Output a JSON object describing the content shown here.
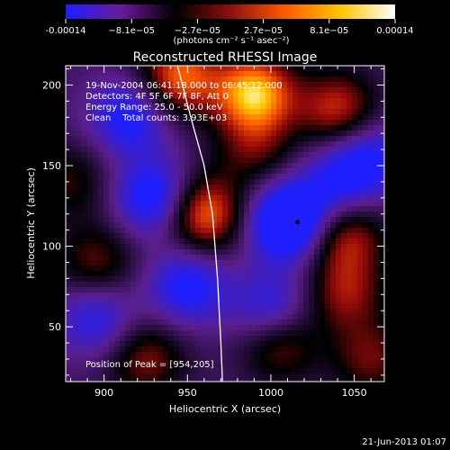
{
  "colorbar": {
    "ticks": [
      "-0.00014",
      "−8.1e−05",
      "−2.7e−05",
      "2.7e−05",
      "8.1e−05",
      "0.00014"
    ],
    "units": "(photons cm⁻² s⁻¹ asec⁻²)",
    "colors": [
      "#1e1eff",
      "#6a1a9a",
      "#000000",
      "#8a1010",
      "#ff5a00",
      "#ffc400",
      "#ffffff"
    ]
  },
  "chart_data": {
    "type": "heatmap",
    "title": "Reconstructed RHESSI Image",
    "xlabel": "Heliocentric X (arcsec)",
    "ylabel": "Heliocentric Y (arcsec)",
    "xlim": [
      877,
      1068
    ],
    "ylim": [
      16,
      212
    ],
    "xticks": [
      900,
      950,
      1000,
      1050
    ],
    "yticks": [
      50,
      100,
      150,
      200
    ],
    "info_lines": [
      "19-Nov-2004 06:41:18.000 to 06:45:12.000",
      "Detectors: 4F 5F 6F 7F 8F, Att 0",
      "Energy Range: 25.0 - 50.0 keV",
      "Clean    Total counts: 3.93E+03"
    ],
    "peak_label": "Position of Peak = [954,205]",
    "peak": [
      954,
      205
    ],
    "limb_curve": [
      [
        944,
        212
      ],
      [
        952,
        180
      ],
      [
        960,
        150
      ],
      [
        965,
        120
      ],
      [
        968,
        80
      ],
      [
        970,
        40
      ],
      [
        971,
        16
      ]
    ],
    "blobs": [
      {
        "x": 990,
        "y": 195,
        "v": 1.0
      },
      {
        "x": 945,
        "y": 205,
        "v": 0.8
      },
      {
        "x": 1040,
        "y": 185,
        "v": 0.65
      },
      {
        "x": 960,
        "y": 120,
        "v": 0.85
      },
      {
        "x": 1045,
        "y": 105,
        "v": 0.6
      },
      {
        "x": 1045,
        "y": 70,
        "v": 0.5
      },
      {
        "x": 895,
        "y": 90,
        "v": 0.45
      },
      {
        "x": 925,
        "y": 30,
        "v": 0.5
      },
      {
        "x": 1005,
        "y": 40,
        "v": 0.55
      },
      {
        "x": 1060,
        "y": 30,
        "v": 0.45
      },
      {
        "x": 990,
        "y": 160,
        "v": 0.4
      },
      {
        "x": 880,
        "y": 140,
        "v": 0.35
      },
      {
        "x": 930,
        "y": 130,
        "v": -0.7
      },
      {
        "x": 1010,
        "y": 115,
        "v": -1.0
      },
      {
        "x": 915,
        "y": 180,
        "v": -0.6
      },
      {
        "x": 1000,
        "y": 60,
        "v": -0.55
      },
      {
        "x": 950,
        "y": 75,
        "v": -0.6
      },
      {
        "x": 1060,
        "y": 155,
        "v": -0.5
      },
      {
        "x": 895,
        "y": 55,
        "v": -0.5
      },
      {
        "x": 1040,
        "y": 140,
        "v": -0.45
      }
    ]
  },
  "footer": {
    "timestamp": "21-Jun-2013 01:07"
  }
}
